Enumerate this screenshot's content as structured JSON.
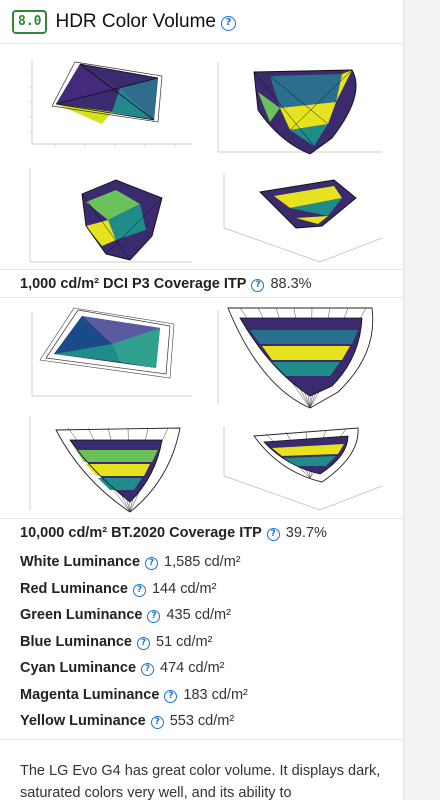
{
  "header": {
    "score": "8.0",
    "title": "HDR Color Volume"
  },
  "metric_1": {
    "label": "1,000 cd/m² DCI P3 Coverage ITP",
    "value": "88.3%"
  },
  "metric_2": {
    "label": "10,000 cd/m² BT.2020 Coverage ITP",
    "value": "39.7%"
  },
  "luminance": [
    {
      "label": "White Luminance",
      "value": "1,585 cd/m²"
    },
    {
      "label": "Red Luminance",
      "value": "144 cd/m²"
    },
    {
      "label": "Green Luminance",
      "value": "435 cd/m²"
    },
    {
      "label": "Blue Luminance",
      "value": "51 cd/m²"
    },
    {
      "label": "Cyan Luminance",
      "value": "474 cd/m²"
    },
    {
      "label": "Magenta Luminance",
      "value": "183 cd/m²"
    },
    {
      "label": "Yellow Luminance",
      "value": "553 cd/m²"
    }
  ],
  "description": "The LG Evo G4 has great color volume. It displays dark, saturated colors very well, and its ability to",
  "colors": {
    "score_green": "#2d8a3a",
    "help_blue": "#1a73d9",
    "viridis_dark": "#3b2a6e",
    "viridis_teal": "#1f8c8a",
    "viridis_yellow": "#e6e21f"
  }
}
